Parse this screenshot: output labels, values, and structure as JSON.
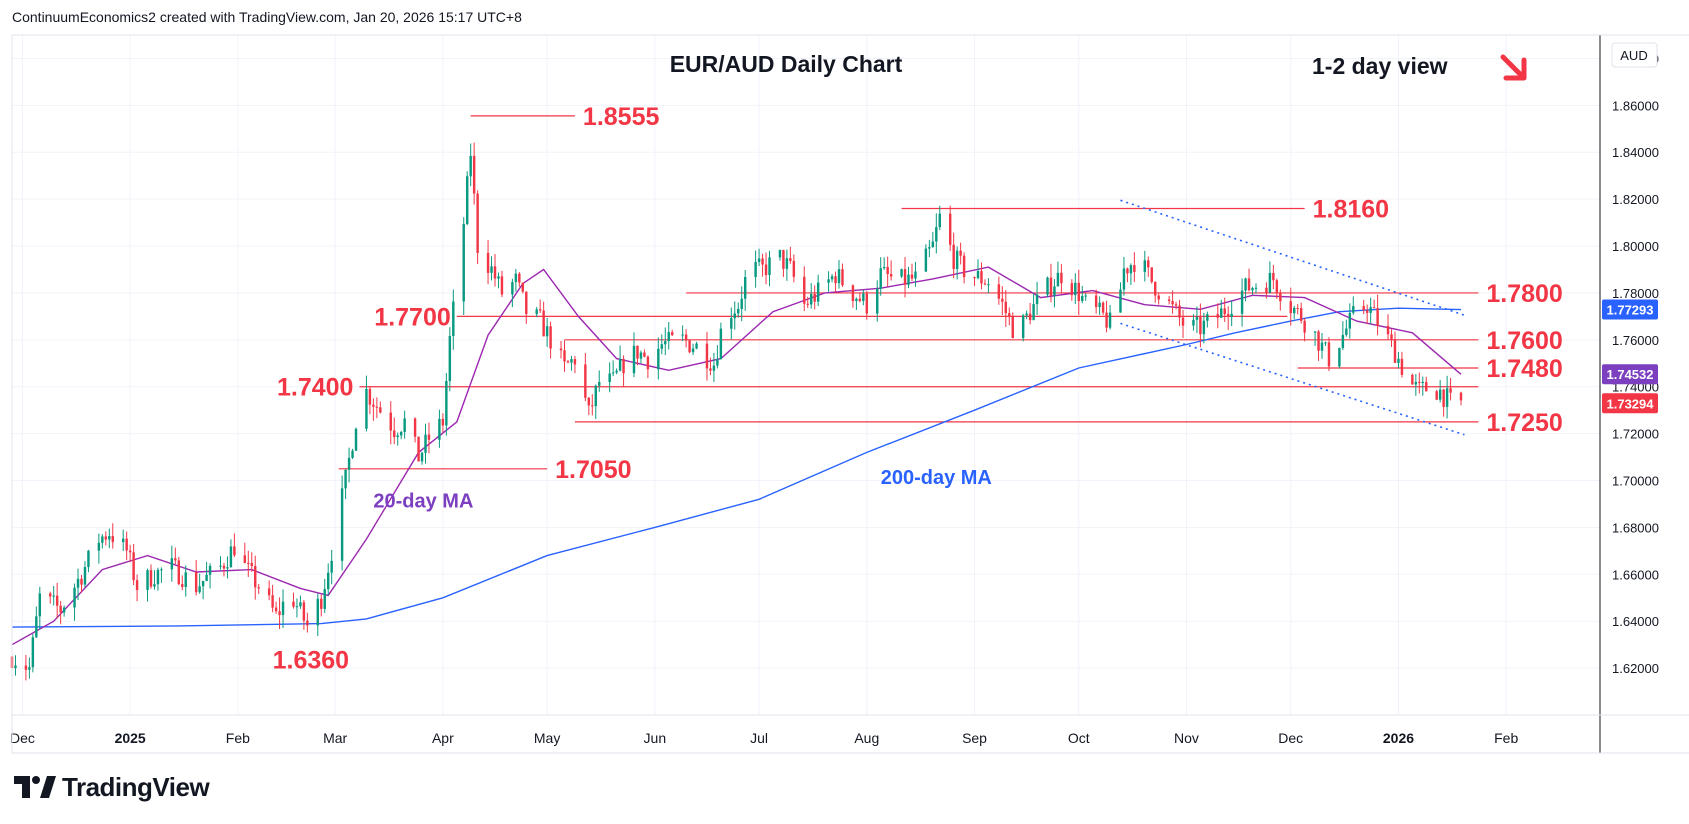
{
  "header": {
    "attribution": "ContinuumEconomics2 created with TradingView.com, Jan 20, 2026 15:17 UTC+8"
  },
  "brand": {
    "name": "TradingView"
  },
  "chart_data": {
    "type": "candlestick",
    "title": "EUR/AUD Daily Chart",
    "subtitle": "1-2 day view",
    "currency": "AUD",
    "yaxis": {
      "range": [
        1.6,
        1.89
      ],
      "ticks": [
        "1.62000",
        "1.64000",
        "1.66000",
        "1.68000",
        "1.70000",
        "1.72000",
        "1.74000",
        "1.76000",
        "1.78000",
        "1.80000",
        "1.82000",
        "1.84000",
        "1.86000",
        "1.88000"
      ]
    },
    "xaxis": {
      "range": [
        "2024-11-28",
        "2026-02-28"
      ],
      "ticks": [
        {
          "label": "Dec",
          "date": "2024-12-01"
        },
        {
          "label": "2025",
          "date": "2025-01-01"
        },
        {
          "label": "Feb",
          "date": "2025-02-01"
        },
        {
          "label": "Mar",
          "date": "2025-03-01"
        },
        {
          "label": "Apr",
          "date": "2025-04-01"
        },
        {
          "label": "May",
          "date": "2025-05-01"
        },
        {
          "label": "Jun",
          "date": "2025-06-01"
        },
        {
          "label": "Jul",
          "date": "2025-07-01"
        },
        {
          "label": "Aug",
          "date": "2025-08-01"
        },
        {
          "label": "Sep",
          "date": "2025-09-01"
        },
        {
          "label": "Oct",
          "date": "2025-10-01"
        },
        {
          "label": "Nov",
          "date": "2025-11-01"
        },
        {
          "label": "Dec",
          "date": "2025-12-01"
        },
        {
          "label": "2026",
          "date": "2026-01-01"
        },
        {
          "label": "Feb",
          "date": "2026-02-01"
        }
      ]
    },
    "price_path": [
      [
        "2024-11-28",
        1.625
      ],
      [
        "2024-12-03",
        1.62
      ],
      [
        "2024-12-06",
        1.65
      ],
      [
        "2024-12-12",
        1.645
      ],
      [
        "2024-12-18",
        1.66
      ],
      [
        "2024-12-23",
        1.675
      ],
      [
        "2024-12-26",
        1.678
      ],
      [
        "2024-12-31",
        1.67
      ],
      [
        "2025-01-03",
        1.655
      ],
      [
        "2025-01-08",
        1.66
      ],
      [
        "2025-01-13",
        1.663
      ],
      [
        "2025-01-20",
        1.655
      ],
      [
        "2025-01-27",
        1.663
      ],
      [
        "2025-01-31",
        1.672
      ],
      [
        "2025-02-03",
        1.663
      ],
      [
        "2025-02-07",
        1.655
      ],
      [
        "2025-02-12",
        1.642
      ],
      [
        "2025-02-16",
        1.652
      ],
      [
        "2025-02-21",
        1.638
      ],
      [
        "2025-02-25",
        1.65
      ],
      [
        "2025-02-28",
        1.67
      ],
      [
        "2025-03-04",
        1.7
      ],
      [
        "2025-03-07",
        1.726
      ],
      [
        "2025-03-10",
        1.738
      ],
      [
        "2025-03-14",
        1.73
      ],
      [
        "2025-03-18",
        1.722
      ],
      [
        "2025-03-21",
        1.725
      ],
      [
        "2025-03-25",
        1.71
      ],
      [
        "2025-03-28",
        1.718
      ],
      [
        "2025-04-01",
        1.725
      ],
      [
        "2025-04-03",
        1.76
      ],
      [
        "2025-04-07",
        1.81
      ],
      [
        "2025-04-09",
        1.84
      ],
      [
        "2025-04-11",
        1.8
      ],
      [
        "2025-04-15",
        1.79
      ],
      [
        "2025-04-18",
        1.78
      ],
      [
        "2025-04-22",
        1.785
      ],
      [
        "2025-04-25",
        1.772
      ],
      [
        "2025-04-29",
        1.768
      ],
      [
        "2025-05-02",
        1.76
      ],
      [
        "2025-05-06",
        1.748
      ],
      [
        "2025-05-09",
        1.752
      ],
      [
        "2025-05-13",
        1.728
      ],
      [
        "2025-05-16",
        1.742
      ],
      [
        "2025-05-20",
        1.742
      ],
      [
        "2025-05-23",
        1.75
      ],
      [
        "2025-05-27",
        1.755
      ],
      [
        "2025-05-30",
        1.752
      ],
      [
        "2025-06-03",
        1.758
      ],
      [
        "2025-06-09",
        1.76
      ],
      [
        "2025-06-13",
        1.757
      ],
      [
        "2025-06-18",
        1.75
      ],
      [
        "2025-06-21",
        1.77
      ],
      [
        "2025-06-25",
        1.775
      ],
      [
        "2025-06-28",
        1.79
      ],
      [
        "2025-07-02",
        1.79
      ],
      [
        "2025-07-07",
        1.795
      ],
      [
        "2025-07-10",
        1.79
      ],
      [
        "2025-07-14",
        1.775
      ],
      [
        "2025-07-18",
        1.78
      ],
      [
        "2025-07-23",
        1.788
      ],
      [
        "2025-07-28",
        1.78
      ],
      [
        "2025-08-01",
        1.775
      ],
      [
        "2025-08-05",
        1.788
      ],
      [
        "2025-08-10",
        1.785
      ],
      [
        "2025-08-15",
        1.786
      ],
      [
        "2025-08-20",
        1.8
      ],
      [
        "2025-08-22",
        1.812
      ],
      [
        "2025-08-26",
        1.795
      ],
      [
        "2025-08-30",
        1.788
      ],
      [
        "2025-09-05",
        1.785
      ],
      [
        "2025-09-09",
        1.775
      ],
      [
        "2025-09-13",
        1.762
      ],
      [
        "2025-09-17",
        1.772
      ],
      [
        "2025-09-22",
        1.782
      ],
      [
        "2025-09-26",
        1.788
      ],
      [
        "2025-10-01",
        1.78
      ],
      [
        "2025-10-03",
        1.775
      ],
      [
        "2025-10-08",
        1.77
      ],
      [
        "2025-10-11",
        1.765
      ],
      [
        "2025-10-14",
        1.79
      ],
      [
        "2025-10-18",
        1.795
      ],
      [
        "2025-10-22",
        1.785
      ],
      [
        "2025-10-27",
        1.775
      ],
      [
        "2025-11-01",
        1.765
      ],
      [
        "2025-11-05",
        1.765
      ],
      [
        "2025-11-10",
        1.77
      ],
      [
        "2025-11-14",
        1.776
      ],
      [
        "2025-11-18",
        1.782
      ],
      [
        "2025-11-22",
        1.784
      ],
      [
        "2025-11-26",
        1.786
      ],
      [
        "2025-11-30",
        1.776
      ],
      [
        "2025-12-04",
        1.77
      ],
      [
        "2025-12-08",
        1.762
      ],
      [
        "2025-12-12",
        1.752
      ],
      [
        "2025-12-16",
        1.762
      ],
      [
        "2025-12-19",
        1.77
      ],
      [
        "2025-12-23",
        1.775
      ],
      [
        "2025-12-27",
        1.765
      ],
      [
        "2025-12-31",
        1.755
      ],
      [
        "2026-01-04",
        1.742
      ],
      [
        "2026-01-07",
        1.738
      ],
      [
        "2026-01-10",
        1.74
      ],
      [
        "2026-01-13",
        1.738
      ],
      [
        "2026-01-16",
        1.733
      ],
      [
        "2026-01-19",
        1.733
      ]
    ],
    "ma20": [
      [
        "2024-11-28",
        1.63
      ],
      [
        "2024-12-10",
        1.64
      ],
      [
        "2024-12-24",
        1.662
      ],
      [
        "2025-01-06",
        1.668
      ],
      [
        "2025-01-20",
        1.661
      ],
      [
        "2025-02-05",
        1.662
      ],
      [
        "2025-02-19",
        1.654
      ],
      [
        "2025-02-27",
        1.651
      ],
      [
        "2025-03-10",
        1.675
      ],
      [
        "2025-03-25",
        1.712
      ],
      [
        "2025-04-05",
        1.725
      ],
      [
        "2025-04-14",
        1.762
      ],
      [
        "2025-04-24",
        1.784
      ],
      [
        "2025-04-30",
        1.79
      ],
      [
        "2025-05-10",
        1.77
      ],
      [
        "2025-05-21",
        1.752
      ],
      [
        "2025-06-05",
        1.747
      ],
      [
        "2025-06-20",
        1.752
      ],
      [
        "2025-07-05",
        1.772
      ],
      [
        "2025-07-20",
        1.78
      ],
      [
        "2025-08-05",
        1.782
      ],
      [
        "2025-08-20",
        1.786
      ],
      [
        "2025-09-05",
        1.791
      ],
      [
        "2025-09-20",
        1.778
      ],
      [
        "2025-10-05",
        1.781
      ],
      [
        "2025-10-20",
        1.775
      ],
      [
        "2025-11-05",
        1.773
      ],
      [
        "2025-11-20",
        1.779
      ],
      [
        "2025-12-05",
        1.778
      ],
      [
        "2025-12-20",
        1.768
      ],
      [
        "2026-01-05",
        1.763
      ],
      [
        "2026-01-19",
        1.7453
      ]
    ],
    "ma200": [
      [
        "2024-11-28",
        1.6375
      ],
      [
        "2025-01-15",
        1.638
      ],
      [
        "2025-02-25",
        1.639
      ],
      [
        "2025-03-10",
        1.641
      ],
      [
        "2025-04-01",
        1.65
      ],
      [
        "2025-05-01",
        1.668
      ],
      [
        "2025-06-01",
        1.68
      ],
      [
        "2025-07-01",
        1.692
      ],
      [
        "2025-08-01",
        1.712
      ],
      [
        "2025-09-01",
        1.73
      ],
      [
        "2025-10-01",
        1.748
      ],
      [
        "2025-11-01",
        1.758
      ],
      [
        "2025-11-15",
        1.763
      ],
      [
        "2025-12-01",
        1.768
      ],
      [
        "2025-12-15",
        1.772
      ],
      [
        "2026-01-01",
        1.7735
      ],
      [
        "2026-01-19",
        1.7729
      ]
    ],
    "price_labels": [
      {
        "value": 1.77293,
        "label": "1.77293",
        "color": "#2962ff"
      },
      {
        "value": 1.74532,
        "label": "1.74532",
        "color": "#7b3fbf"
      },
      {
        "value": 1.73294,
        "label": "1.73294",
        "color": "#f23645"
      }
    ],
    "levels": [
      {
        "value": 1.8555,
        "label": "1.8555",
        "from": "2025-04-09",
        "to": "2025-05-09",
        "label_side": "right"
      },
      {
        "value": 1.816,
        "label": "1.8160",
        "from": "2025-08-11",
        "to": "2025-12-05",
        "label_side": "right"
      },
      {
        "value": 1.78,
        "label": "1.7800",
        "from": "2025-06-10",
        "to": "2026-01-24",
        "label_side": "right"
      },
      {
        "value": 1.77,
        "label": "1.7700",
        "from": "2025-04-05",
        "to": "2025-11-30",
        "label_side": "left"
      },
      {
        "value": 1.76,
        "label": "1.7600",
        "from": "2025-05-06",
        "to": "2026-01-24",
        "label_side": "right"
      },
      {
        "value": 1.748,
        "label": "1.7480",
        "from": "2025-12-03",
        "to": "2026-01-24",
        "label_side": "right"
      },
      {
        "value": 1.74,
        "label": "1.7400",
        "from": "2025-03-08",
        "to": "2026-01-24",
        "label_side": "left"
      },
      {
        "value": 1.725,
        "label": "1.7250",
        "from": "2025-05-09",
        "to": "2026-01-24",
        "label_side": "right"
      },
      {
        "value": 1.705,
        "label": "1.7050",
        "from": "2025-03-02",
        "to": "2025-05-01",
        "label_side": "right"
      }
    ],
    "lows": [
      {
        "value": 1.636,
        "label": "1.6360",
        "date": "2025-02-22"
      }
    ],
    "trendlines": [
      {
        "from": [
          "2025-10-13",
          1.8195
        ],
        "to": [
          "2026-01-20",
          1.7705
        ]
      },
      {
        "from": [
          "2025-10-13",
          1.767
        ],
        "to": [
          "2026-01-20",
          1.7195
        ]
      }
    ],
    "annotations": [
      {
        "text": "20-day MA",
        "date": "2025-03-12",
        "value": 1.6885,
        "color": "#7b3fbf"
      },
      {
        "text": "200-day MA",
        "date": "2025-08-05",
        "value": 1.6985,
        "color": "#2962ff"
      }
    ],
    "view_arrow": {
      "direction": "down-right",
      "color": "#f23645"
    }
  }
}
